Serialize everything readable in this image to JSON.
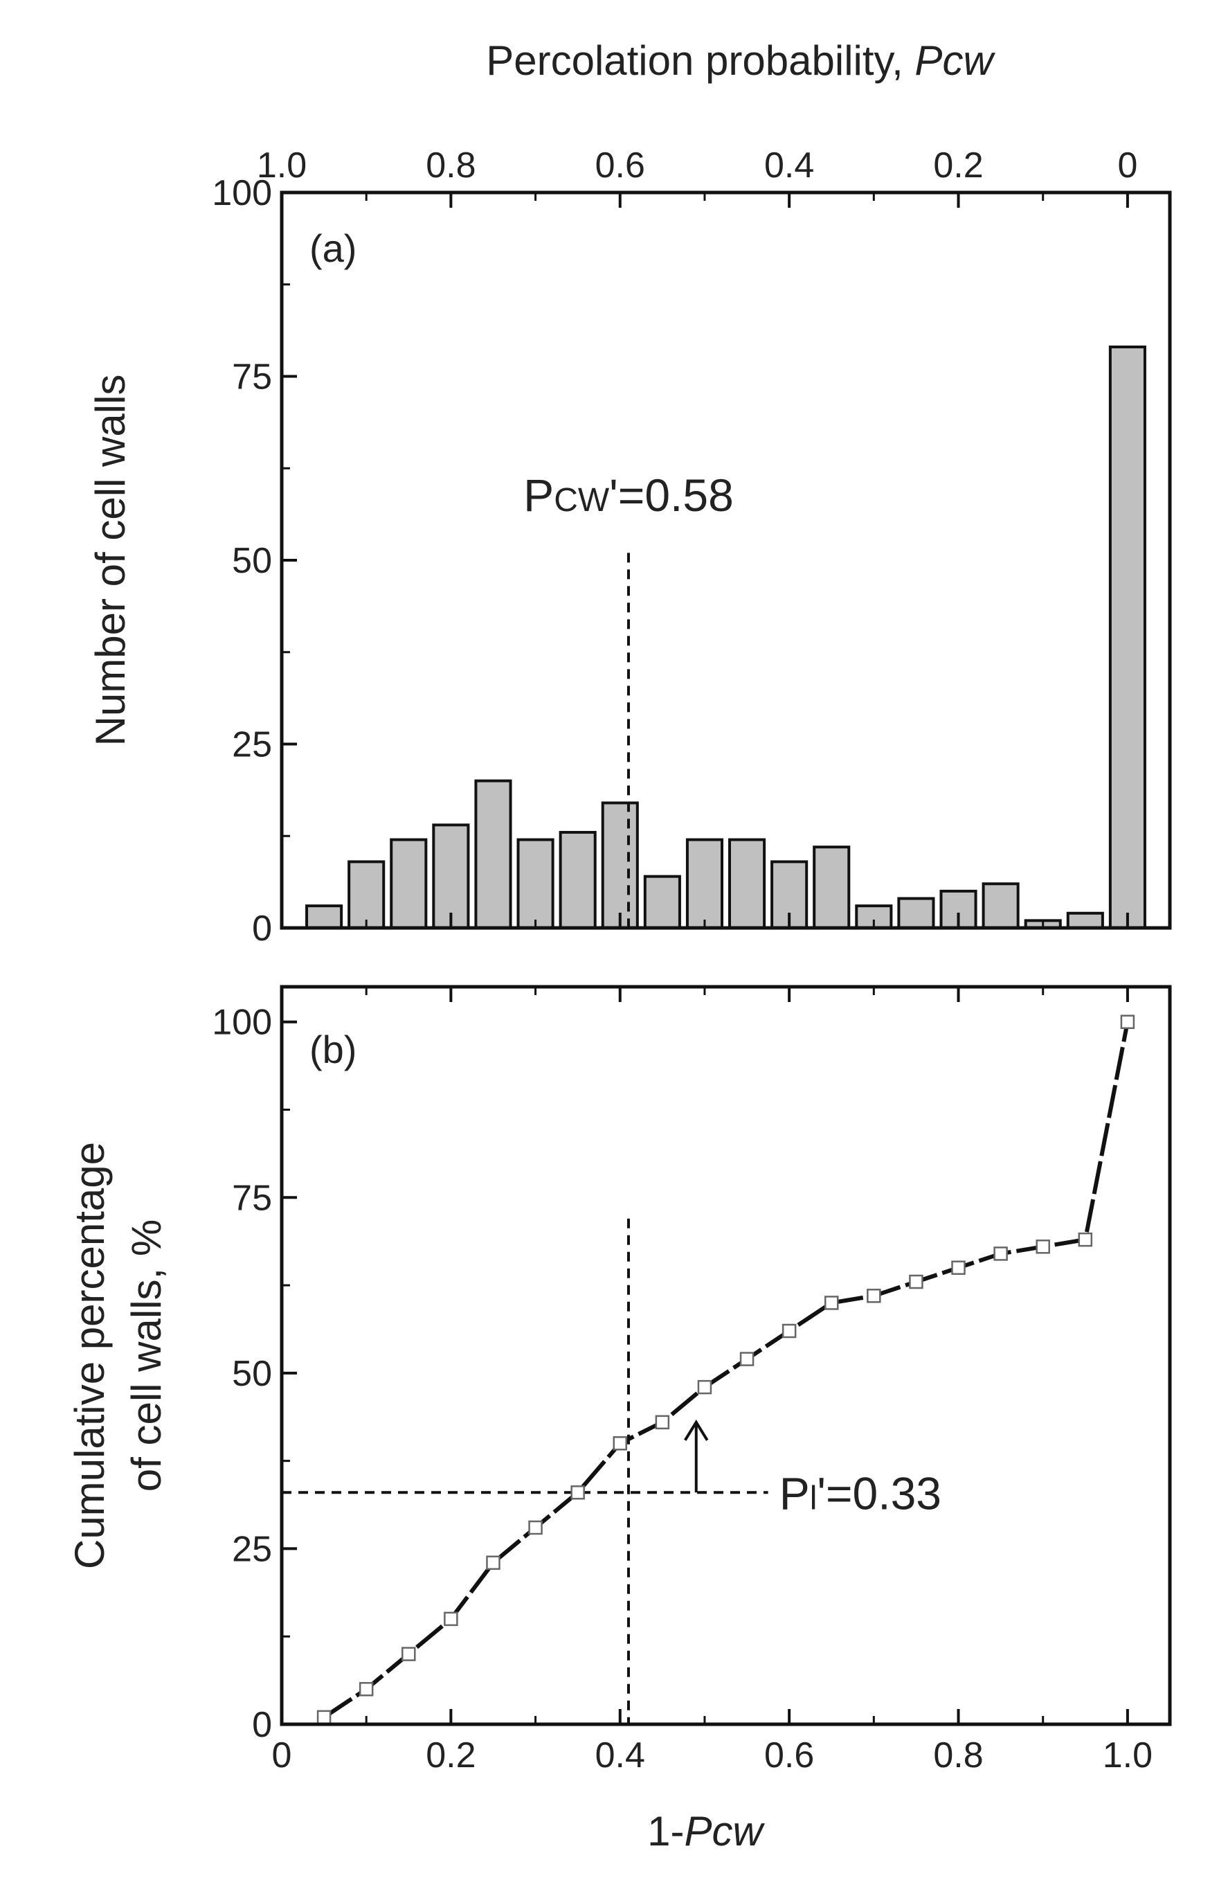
{
  "chart_data": [
    {
      "type": "bar",
      "panel_label": "(a)",
      "title_top": {
        "main": "Percolation probability, ",
        "italic": "Pcw"
      },
      "ylabel": "Number of cell walls",
      "top_axis": {
        "ticks": [
          1.0,
          0.8,
          0.6,
          0.4,
          0.2,
          0
        ],
        "tick_labels": [
          "1.0",
          "0.8",
          "0.6",
          "0.4",
          "0.2",
          "0"
        ],
        "range": [
          1.05,
          -0.05
        ]
      },
      "ylim": [
        0,
        100
      ],
      "yticks": [
        0,
        25,
        50,
        75,
        100
      ],
      "ytick_labels": [
        "0",
        "25",
        "50",
        "75",
        "100"
      ],
      "x_centers": [
        0.05,
        0.1,
        0.15,
        0.2,
        0.25,
        0.3,
        0.35,
        0.4,
        0.45,
        0.5,
        0.55,
        0.6,
        0.65,
        0.7,
        0.75,
        0.8,
        0.85,
        0.9,
        0.95,
        1.0
      ],
      "values": [
        3,
        9,
        12,
        14,
        20,
        12,
        13,
        17,
        7,
        12,
        12,
        9,
        11,
        3,
        4,
        5,
        6,
        1,
        2,
        79
      ],
      "bar_color": "#c0c0c0",
      "annotation": {
        "prefix": "P",
        "sub": "CW",
        "suffix": "'=0.58",
        "x": 0.41
      }
    },
    {
      "type": "line",
      "panel_label": "(b)",
      "xlabel": {
        "main": "1-",
        "italic": "Pcw"
      },
      "ylabel_line1": "Cumulative percentage",
      "ylabel_line2": "of cell walls, %",
      "xlim": [
        0,
        1.05
      ],
      "xticks": [
        0,
        0.2,
        0.4,
        0.6,
        0.8,
        1.0
      ],
      "xtick_labels": [
        "0",
        "0.2",
        "0.4",
        "0.6",
        "0.8",
        "1.0"
      ],
      "ylim": [
        0,
        105
      ],
      "yticks": [
        0,
        25,
        50,
        75,
        100
      ],
      "ytick_labels": [
        "0",
        "25",
        "50",
        "75",
        "100"
      ],
      "x": [
        0.05,
        0.1,
        0.15,
        0.2,
        0.25,
        0.3,
        0.35,
        0.4,
        0.45,
        0.5,
        0.55,
        0.6,
        0.65,
        0.7,
        0.75,
        0.8,
        0.85,
        0.9,
        0.95,
        1.0
      ],
      "y": [
        1,
        5,
        10,
        15,
        23,
        28,
        33,
        40,
        43,
        48,
        52,
        56,
        60,
        61,
        63,
        65,
        67,
        68,
        69,
        100
      ],
      "dashed_v_x": 0.41,
      "dashed_h_y": 33,
      "annotation": {
        "prefix": "P",
        "sub": "l",
        "suffix": "'=0.33",
        "arrow_x": 0.49,
        "arrow_tip_y": 43,
        "arrow_base_y": 33
      }
    }
  ]
}
